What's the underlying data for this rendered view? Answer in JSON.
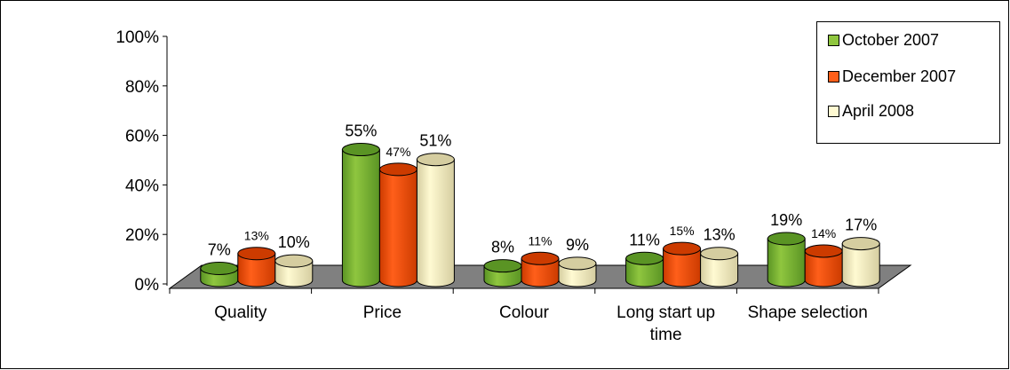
{
  "chart_data": {
    "type": "bar",
    "title": "",
    "xlabel": "",
    "ylabel": "",
    "categories": [
      "Quality",
      "Price",
      "Colour",
      "Long start up time",
      "Shape selection"
    ],
    "category_lines": [
      [
        "Quality"
      ],
      [
        "Price"
      ],
      [
        "Colour"
      ],
      [
        "Long start up",
        "time"
      ],
      [
        "Shape selection"
      ]
    ],
    "series": [
      {
        "name": "October 2007",
        "values": [
          7,
          55,
          8,
          11,
          19
        ],
        "labels": [
          "7%",
          "55%",
          "8%",
          "11%",
          "19%"
        ]
      },
      {
        "name": "December 2007",
        "values": [
          13,
          47,
          11,
          15,
          14
        ],
        "labels": [
          "13%",
          "47%",
          "11%",
          "15%",
          "14%"
        ]
      },
      {
        "name": "April 2008",
        "values": [
          10,
          51,
          9,
          13,
          17
        ],
        "labels": [
          "10%",
          "51%",
          "9%",
          "13%",
          "17%"
        ]
      }
    ],
    "ylim": [
      0,
      100
    ],
    "y_ticks": [
      "0%",
      "20%",
      "40%",
      "60%",
      "80%",
      "100%"
    ],
    "legend_position": "top-right",
    "grid": false,
    "style": "3D clustered cylinder bars",
    "colors": {
      "series": [
        "#8fc63f",
        "#ff5f1a",
        "#fffad2"
      ],
      "series_shade": [
        "#5a9424",
        "#cc3b00",
        "#d5cda0"
      ],
      "floor": "#808080",
      "axis": "#000000"
    }
  }
}
